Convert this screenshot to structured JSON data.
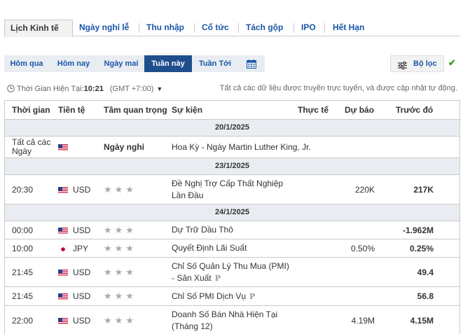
{
  "tabs": [
    {
      "label": "Lịch Kinh tế",
      "active": true
    },
    {
      "label": "Ngày nghỉ lễ"
    },
    {
      "label": "Thu nhập"
    },
    {
      "label": "Cổ tức"
    },
    {
      "label": "Tách gộp"
    },
    {
      "label": "IPO"
    },
    {
      "label": "Hết Hạn"
    }
  ],
  "range": {
    "buttons": [
      "Hôm qua",
      "Hôm nay",
      "Ngày mai",
      "Tuần này",
      "Tuần Tới"
    ],
    "active": "Tuần này",
    "calendar_icon": "calendar-icon"
  },
  "filter": {
    "label": "Bộ lọc",
    "icon": "sliders-icon"
  },
  "info": {
    "time_label": "Thời Gian Hiện Tại:",
    "time_value": "10:21",
    "tz": "(GMT +7:00)",
    "note": "Tất cả các dữ liệu được truyền trực tuyến, và được cập nhật tự động."
  },
  "columns": {
    "time": "Thời gian",
    "currency": "Tiền tệ",
    "importance": "Tầm quan trọng",
    "event": "Sự kiện",
    "actual": "Thực tế",
    "forecast": "Dự báo",
    "previous": "Trước đó"
  },
  "groups": [
    {
      "date": "20/1/2025",
      "rows": [
        {
          "time": "Tất cả các Ngày",
          "flag": "us",
          "currency": "",
          "importance": "Ngày nghỉ",
          "event": "Hoa Kỳ - Ngày Martin Luther King, Jr.",
          "actual": "",
          "forecast": "",
          "previous": ""
        }
      ]
    },
    {
      "date": "23/1/2025",
      "rows": [
        {
          "time": "20:30",
          "flag": "us",
          "currency": "USD",
          "importance": "stars",
          "event": "Đề Nghị Trợ Cấp Thất Nghiệp Lần Đầu",
          "actual": "",
          "forecast": "220K",
          "previous": "217K"
        }
      ]
    },
    {
      "date": "24/1/2025",
      "rows": [
        {
          "time": "00:00",
          "flag": "us",
          "currency": "USD",
          "importance": "stars",
          "event": "Dự Trữ Dầu Thô",
          "actual": "",
          "forecast": "",
          "previous": "-1.962M"
        },
        {
          "time": "10:00",
          "flag": "jp",
          "currency": "JPY",
          "importance": "stars",
          "event": "Quyết Định Lãi Suất",
          "actual": "",
          "forecast": "0.50%",
          "previous": "0.25%"
        },
        {
          "time": "21:45",
          "flag": "us",
          "currency": "USD",
          "importance": "stars",
          "event": "Chỉ Số Quản Lý Thu Mua (PMI) - Sản Xuất",
          "prelim": "P",
          "actual": "",
          "forecast": "",
          "previous": "49.4"
        },
        {
          "time": "21:45",
          "flag": "us",
          "currency": "USD",
          "importance": "stars",
          "event": "Chỉ Số PMI Dịch Vụ",
          "prelim": "P",
          "actual": "",
          "forecast": "",
          "previous": "56.8"
        },
        {
          "time": "22:00",
          "flag": "us",
          "currency": "USD",
          "importance": "stars",
          "event": "Doanh Số Bán Nhà Hiện Tại (Tháng 12)",
          "actual": "",
          "forecast": "4.19M",
          "previous": "4.15M"
        }
      ]
    }
  ]
}
